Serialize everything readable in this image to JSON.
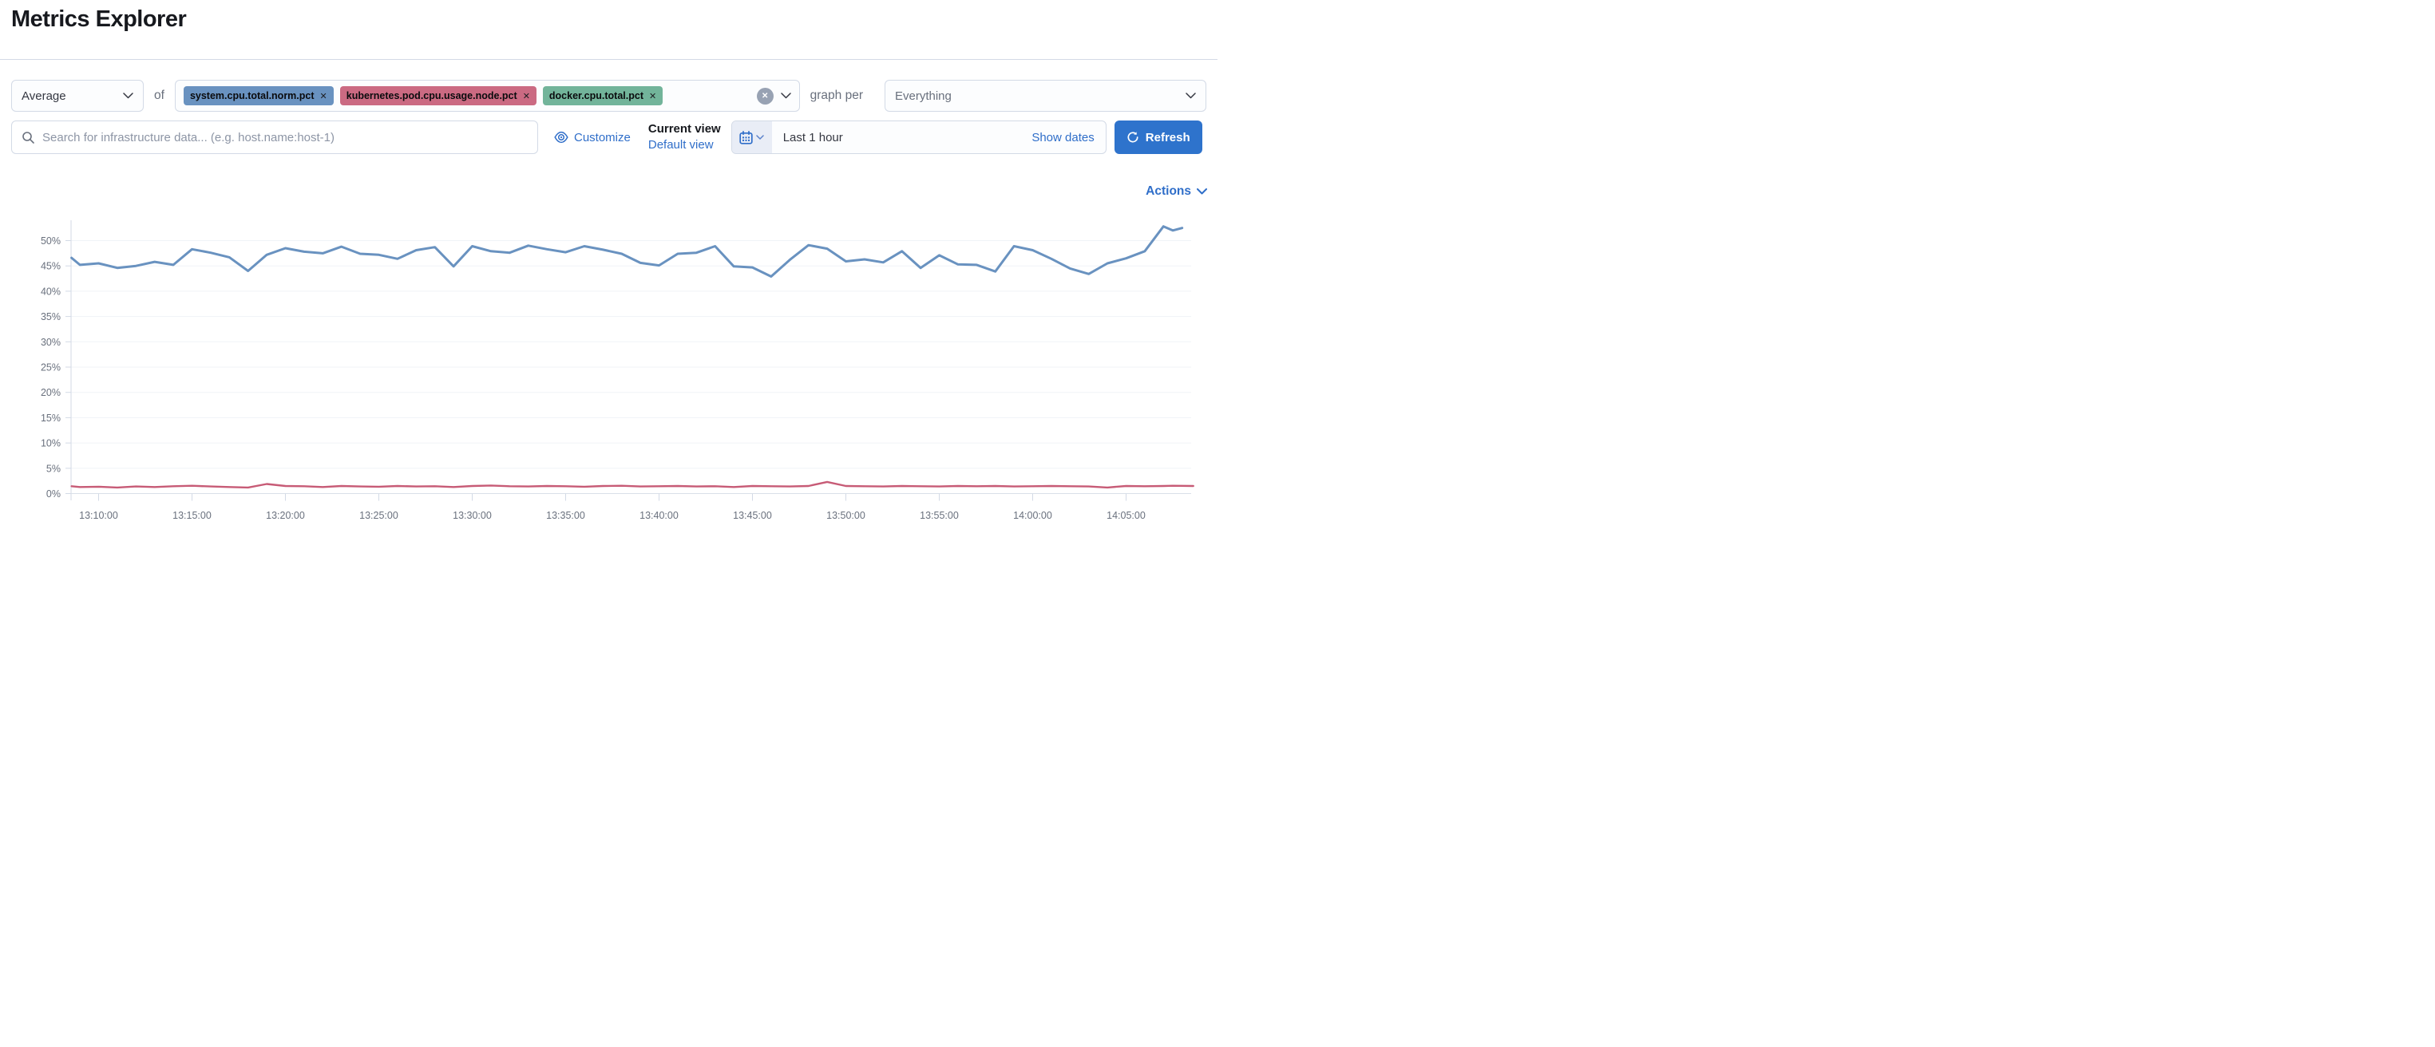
{
  "page": {
    "title": "Metrics Explorer"
  },
  "toolbar": {
    "aggregation": {
      "value": "Average"
    },
    "of_label": "of",
    "metrics": [
      {
        "label": "system.cpu.total.norm.pct",
        "color": "#6992C0"
      },
      {
        "label": "kubernetes.pod.cpu.usage.node.pct",
        "color": "#CB6A82"
      },
      {
        "label": "docker.cpu.total.pct",
        "color": "#72B49A"
      }
    ],
    "clear_icon": "x",
    "graph_per_label": "graph per",
    "group_by": {
      "value": "Everything"
    }
  },
  "searchbar": {
    "placeholder": "Search for infrastructure data... (e.g. host.name:host-1)",
    "customize_label": "Customize",
    "current_view_label": "Current view",
    "default_view_label": "Default view",
    "time_range": {
      "value": "Last 1 hour",
      "show_dates_label": "Show dates"
    },
    "refresh_label": "Refresh"
  },
  "chart_header": {
    "actions_label": "Actions"
  },
  "chart_data": {
    "type": "line",
    "title": "",
    "xlabel": "",
    "ylabel": "",
    "grid": "horizontal",
    "legend": "none",
    "y_axis": {
      "tick_values": [
        0,
        5,
        10,
        15,
        20,
        25,
        30,
        35,
        40,
        45,
        50
      ],
      "tick_suffix": "%",
      "range_pct": [
        0,
        53.5
      ]
    },
    "x_axis": {
      "tick_minutes_after_1300": [
        10,
        15,
        20,
        25,
        30,
        35,
        40,
        45,
        50,
        55,
        60,
        65
      ],
      "tick_labels": [
        "13:10:00",
        "13:15:00",
        "13:20:00",
        "13:25:00",
        "13:30:00",
        "13:35:00",
        "13:40:00",
        "13:45:00",
        "13:50:00",
        "13:55:00",
        "14:00:00",
        "14:05:00"
      ]
    },
    "series": [
      {
        "name": "kubernetes.pod.cpu.usage.node.pct (Average)",
        "color": "#C75B76",
        "stroke_width": 2.4,
        "x_minutes_after_1300": [
          8.55,
          9,
          10,
          11,
          12,
          13,
          14,
          15,
          16,
          17,
          18,
          19,
          20,
          21,
          22,
          23,
          24,
          25,
          26,
          27,
          28,
          29,
          30,
          31,
          32,
          33,
          34,
          35,
          36,
          37,
          38,
          39,
          40,
          41,
          42,
          43,
          44,
          45,
          46,
          47,
          48,
          49,
          50,
          51,
          52,
          53,
          54,
          55,
          56,
          57,
          58,
          59,
          60,
          61,
          62,
          63,
          64,
          65,
          66,
          67,
          67.5,
          68.6
        ],
        "values_pct": [
          1.45,
          1.3,
          1.35,
          1.2,
          1.4,
          1.3,
          1.45,
          1.55,
          1.4,
          1.3,
          1.2,
          1.9,
          1.5,
          1.45,
          1.3,
          1.5,
          1.4,
          1.35,
          1.5,
          1.4,
          1.45,
          1.3,
          1.5,
          1.6,
          1.45,
          1.4,
          1.5,
          1.45,
          1.35,
          1.5,
          1.55,
          1.4,
          1.45,
          1.5,
          1.4,
          1.45,
          1.3,
          1.5,
          1.45,
          1.4,
          1.5,
          2.3,
          1.5,
          1.45,
          1.4,
          1.5,
          1.45,
          1.4,
          1.5,
          1.45,
          1.5,
          1.4,
          1.45,
          1.5,
          1.45,
          1.4,
          1.2,
          1.5,
          1.45,
          1.5,
          1.55,
          1.5
        ]
      },
      {
        "name": "system.cpu.total.norm.pct (Average)",
        "color": "#6992C0",
        "stroke_width": 3,
        "x_minutes_after_1300": [
          8.55,
          9,
          10,
          11,
          12,
          13,
          14,
          15,
          16,
          17,
          18,
          19,
          20,
          21,
          22,
          23,
          24,
          25,
          26,
          27,
          28,
          29,
          30,
          31,
          32,
          33,
          34,
          35,
          36,
          37,
          38,
          39,
          40,
          41,
          42,
          43,
          44,
          45,
          46,
          47,
          48,
          49,
          50,
          51,
          52,
          53,
          54,
          55,
          56,
          57,
          58,
          59,
          60,
          61,
          62,
          63,
          64,
          65,
          66,
          67,
          67.5,
          68
        ],
        "values_pct": [
          46.6,
          45.2,
          45.5,
          44.6,
          45.0,
          45.8,
          45.2,
          48.3,
          47.6,
          46.7,
          44.0,
          47.2,
          48.5,
          47.8,
          47.5,
          48.8,
          47.4,
          47.2,
          46.4,
          48.1,
          48.7,
          44.9,
          48.9,
          47.9,
          47.6,
          49.0,
          48.3,
          47.7,
          48.9,
          48.2,
          47.4,
          45.6,
          45.1,
          47.4,
          47.6,
          48.9,
          44.9,
          44.7,
          42.9,
          46.2,
          49.1,
          48.4,
          45.9,
          46.3,
          45.7,
          47.9,
          44.6,
          47.1,
          45.3,
          45.2,
          43.9,
          48.9,
          48.1,
          46.4,
          44.5,
          43.4,
          45.5,
          46.5,
          47.9,
          52.8,
          52.0,
          52.5
        ]
      }
    ]
  }
}
